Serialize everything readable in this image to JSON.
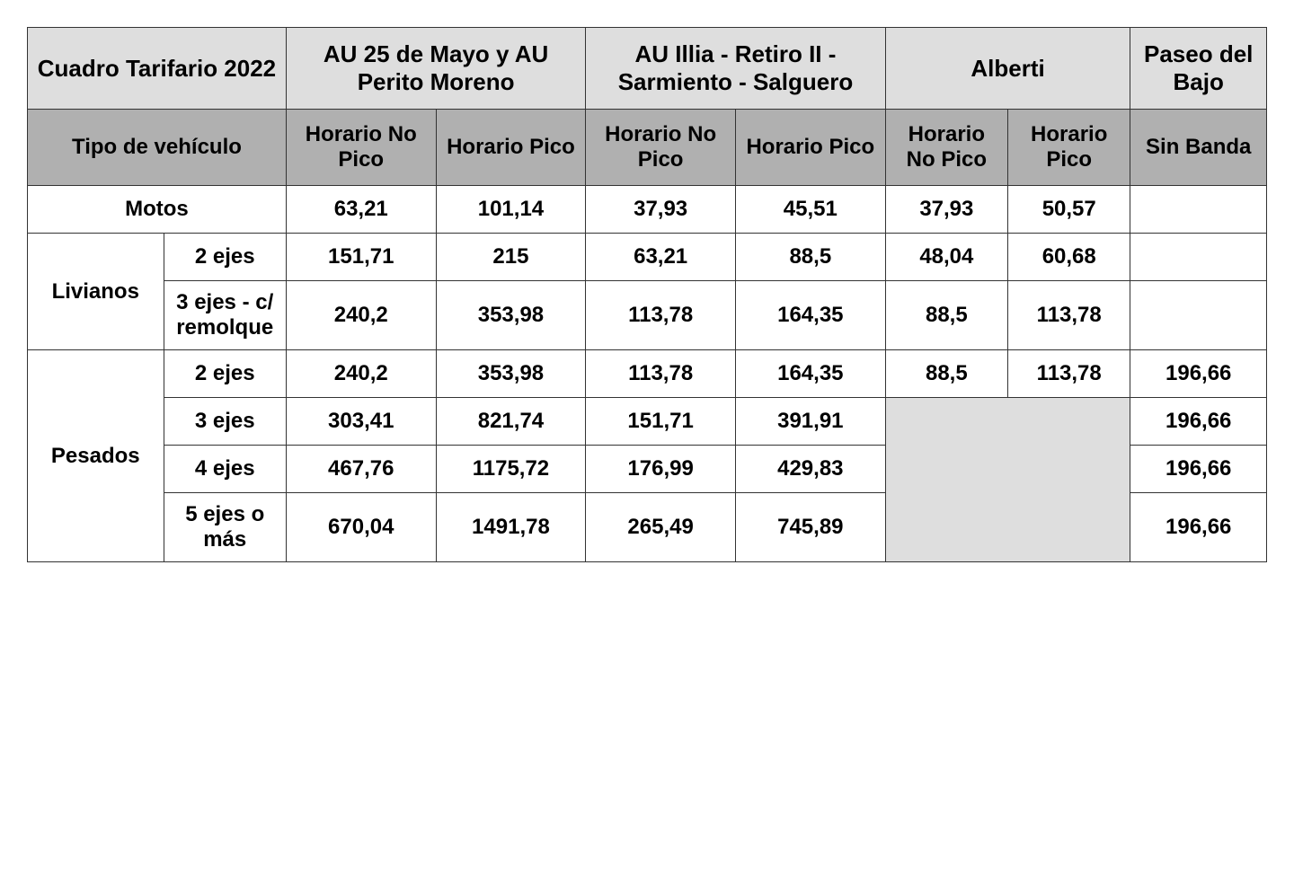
{
  "colors": {
    "hdr1_bg": "#dedede",
    "hdr2_bg": "#b0b0b0",
    "row_bg": "#ffffff",
    "empty_bg": "#dedede",
    "border": "#333333",
    "text": "#000000"
  },
  "typography": {
    "header_fontsize_pt": 20,
    "subheader_fontsize_pt": 18,
    "data_fontsize_pt": 18,
    "font_weight": "bold",
    "font_family": "Arial"
  },
  "columns_widths_pct": [
    10,
    9,
    11,
    11,
    11,
    11,
    9,
    9,
    10
  ],
  "header_row1": {
    "title": "Cuadro Tarifario 2022",
    "grp1": "AU 25 de Mayo y AU Perito Moreno",
    "grp2": "AU Illia - Retiro II - Sarmiento - Salguero",
    "grp3": "Alberti",
    "grp4": "Paseo del Bajo"
  },
  "header_row2": {
    "tipo": "Tipo de vehículo",
    "c1": "Horario No Pico",
    "c2": "Horario Pico",
    "c3": "Horario No Pico",
    "c4": "Horario Pico",
    "c5": "Horario No Pico",
    "c6": "Horario Pico",
    "c7": "Sin Banda"
  },
  "categories": {
    "motos": "Motos",
    "livianos": "Livianos",
    "pesados": "Pesados",
    "liv_2": "2 ejes",
    "liv_3": "3 ejes - c/ remolque",
    "pes_2": "2 ejes",
    "pes_3": "3 ejes",
    "pes_4": "4 ejes",
    "pes_5": "5 ejes o más"
  },
  "rows": {
    "motos": {
      "v": [
        "63,21",
        "101,14",
        "37,93",
        "45,51",
        "37,93",
        "50,57",
        ""
      ]
    },
    "liv_2": {
      "v": [
        "151,71",
        "215",
        "63,21",
        "88,5",
        "48,04",
        "60,68",
        ""
      ]
    },
    "liv_3": {
      "v": [
        "240,2",
        "353,98",
        "113,78",
        "164,35",
        "88,5",
        "113,78",
        ""
      ]
    },
    "pes_2": {
      "v": [
        "240,2",
        "353,98",
        "113,78",
        "164,35",
        "88,5",
        "113,78",
        "196,66"
      ]
    },
    "pes_3": {
      "v": [
        "303,41",
        "821,74",
        "151,71",
        "391,91",
        "196,66"
      ]
    },
    "pes_4": {
      "v": [
        "467,76",
        "1175,72",
        "176,99",
        "429,83",
        "196,66"
      ]
    },
    "pes_5": {
      "v": [
        "670,04",
        "1491,78",
        "265,49",
        "745,89",
        "196,66"
      ]
    }
  }
}
